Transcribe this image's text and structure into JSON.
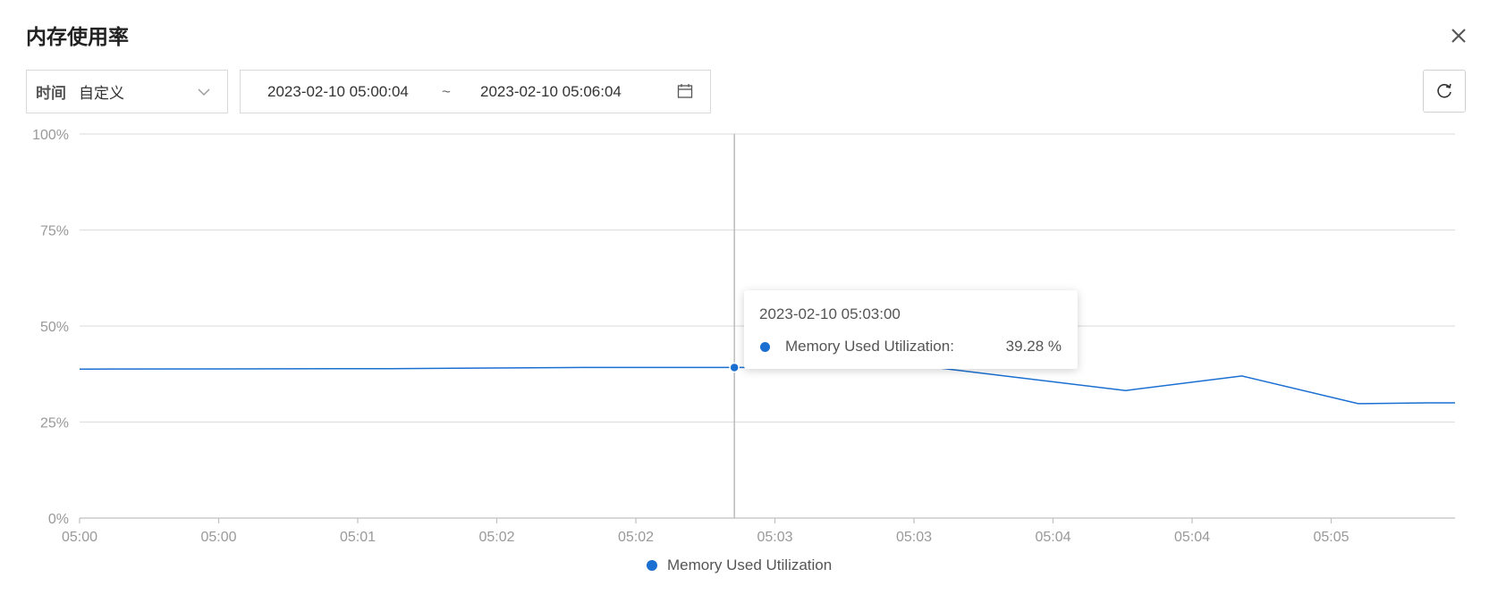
{
  "dialog": {
    "title": "内存使用率",
    "close_icon": "close-icon"
  },
  "filter": {
    "time_label": "时间",
    "time_mode": "自定义",
    "start": "2023-02-10 05:00:04",
    "separator": "~",
    "end": "2023-02-10 05:06:04",
    "calendar_icon": "calendar-icon",
    "refresh_icon": "refresh-icon"
  },
  "colors": {
    "series": "#1a6fd1",
    "grid": "#e0e0e0",
    "axis": "#bfbfbf"
  },
  "tooltip": {
    "time": "2023-02-10 05:03:00",
    "series_name": "Memory Used Utilization:",
    "value": "39.28 %"
  },
  "chart_data": {
    "type": "line",
    "title": "",
    "xlabel": "",
    "ylabel": "",
    "x_tick_labels": [
      "05:00",
      "05:00",
      "05:01",
      "05:02",
      "05:02",
      "05:03",
      "05:03",
      "05:04",
      "05:04",
      "05:05"
    ],
    "y_tick_labels": [
      "0%",
      "25%",
      "50%",
      "75%",
      "100%"
    ],
    "ylim": [
      0,
      100
    ],
    "xlim_seconds": [
      0,
      355
    ],
    "grid": true,
    "legend_position": "bottom-center",
    "series": [
      {
        "name": "Memory Used Utilization",
        "x_seconds": [
          0,
          80,
          130,
          180,
          220,
          270,
          300,
          330,
          348,
          355
        ],
        "values": [
          38.8,
          38.9,
          39.2,
          39.2,
          39.3,
          33.2,
          37.0,
          29.8,
          30.0,
          30.0
        ]
      }
    ],
    "hover_x_seconds": 169
  }
}
